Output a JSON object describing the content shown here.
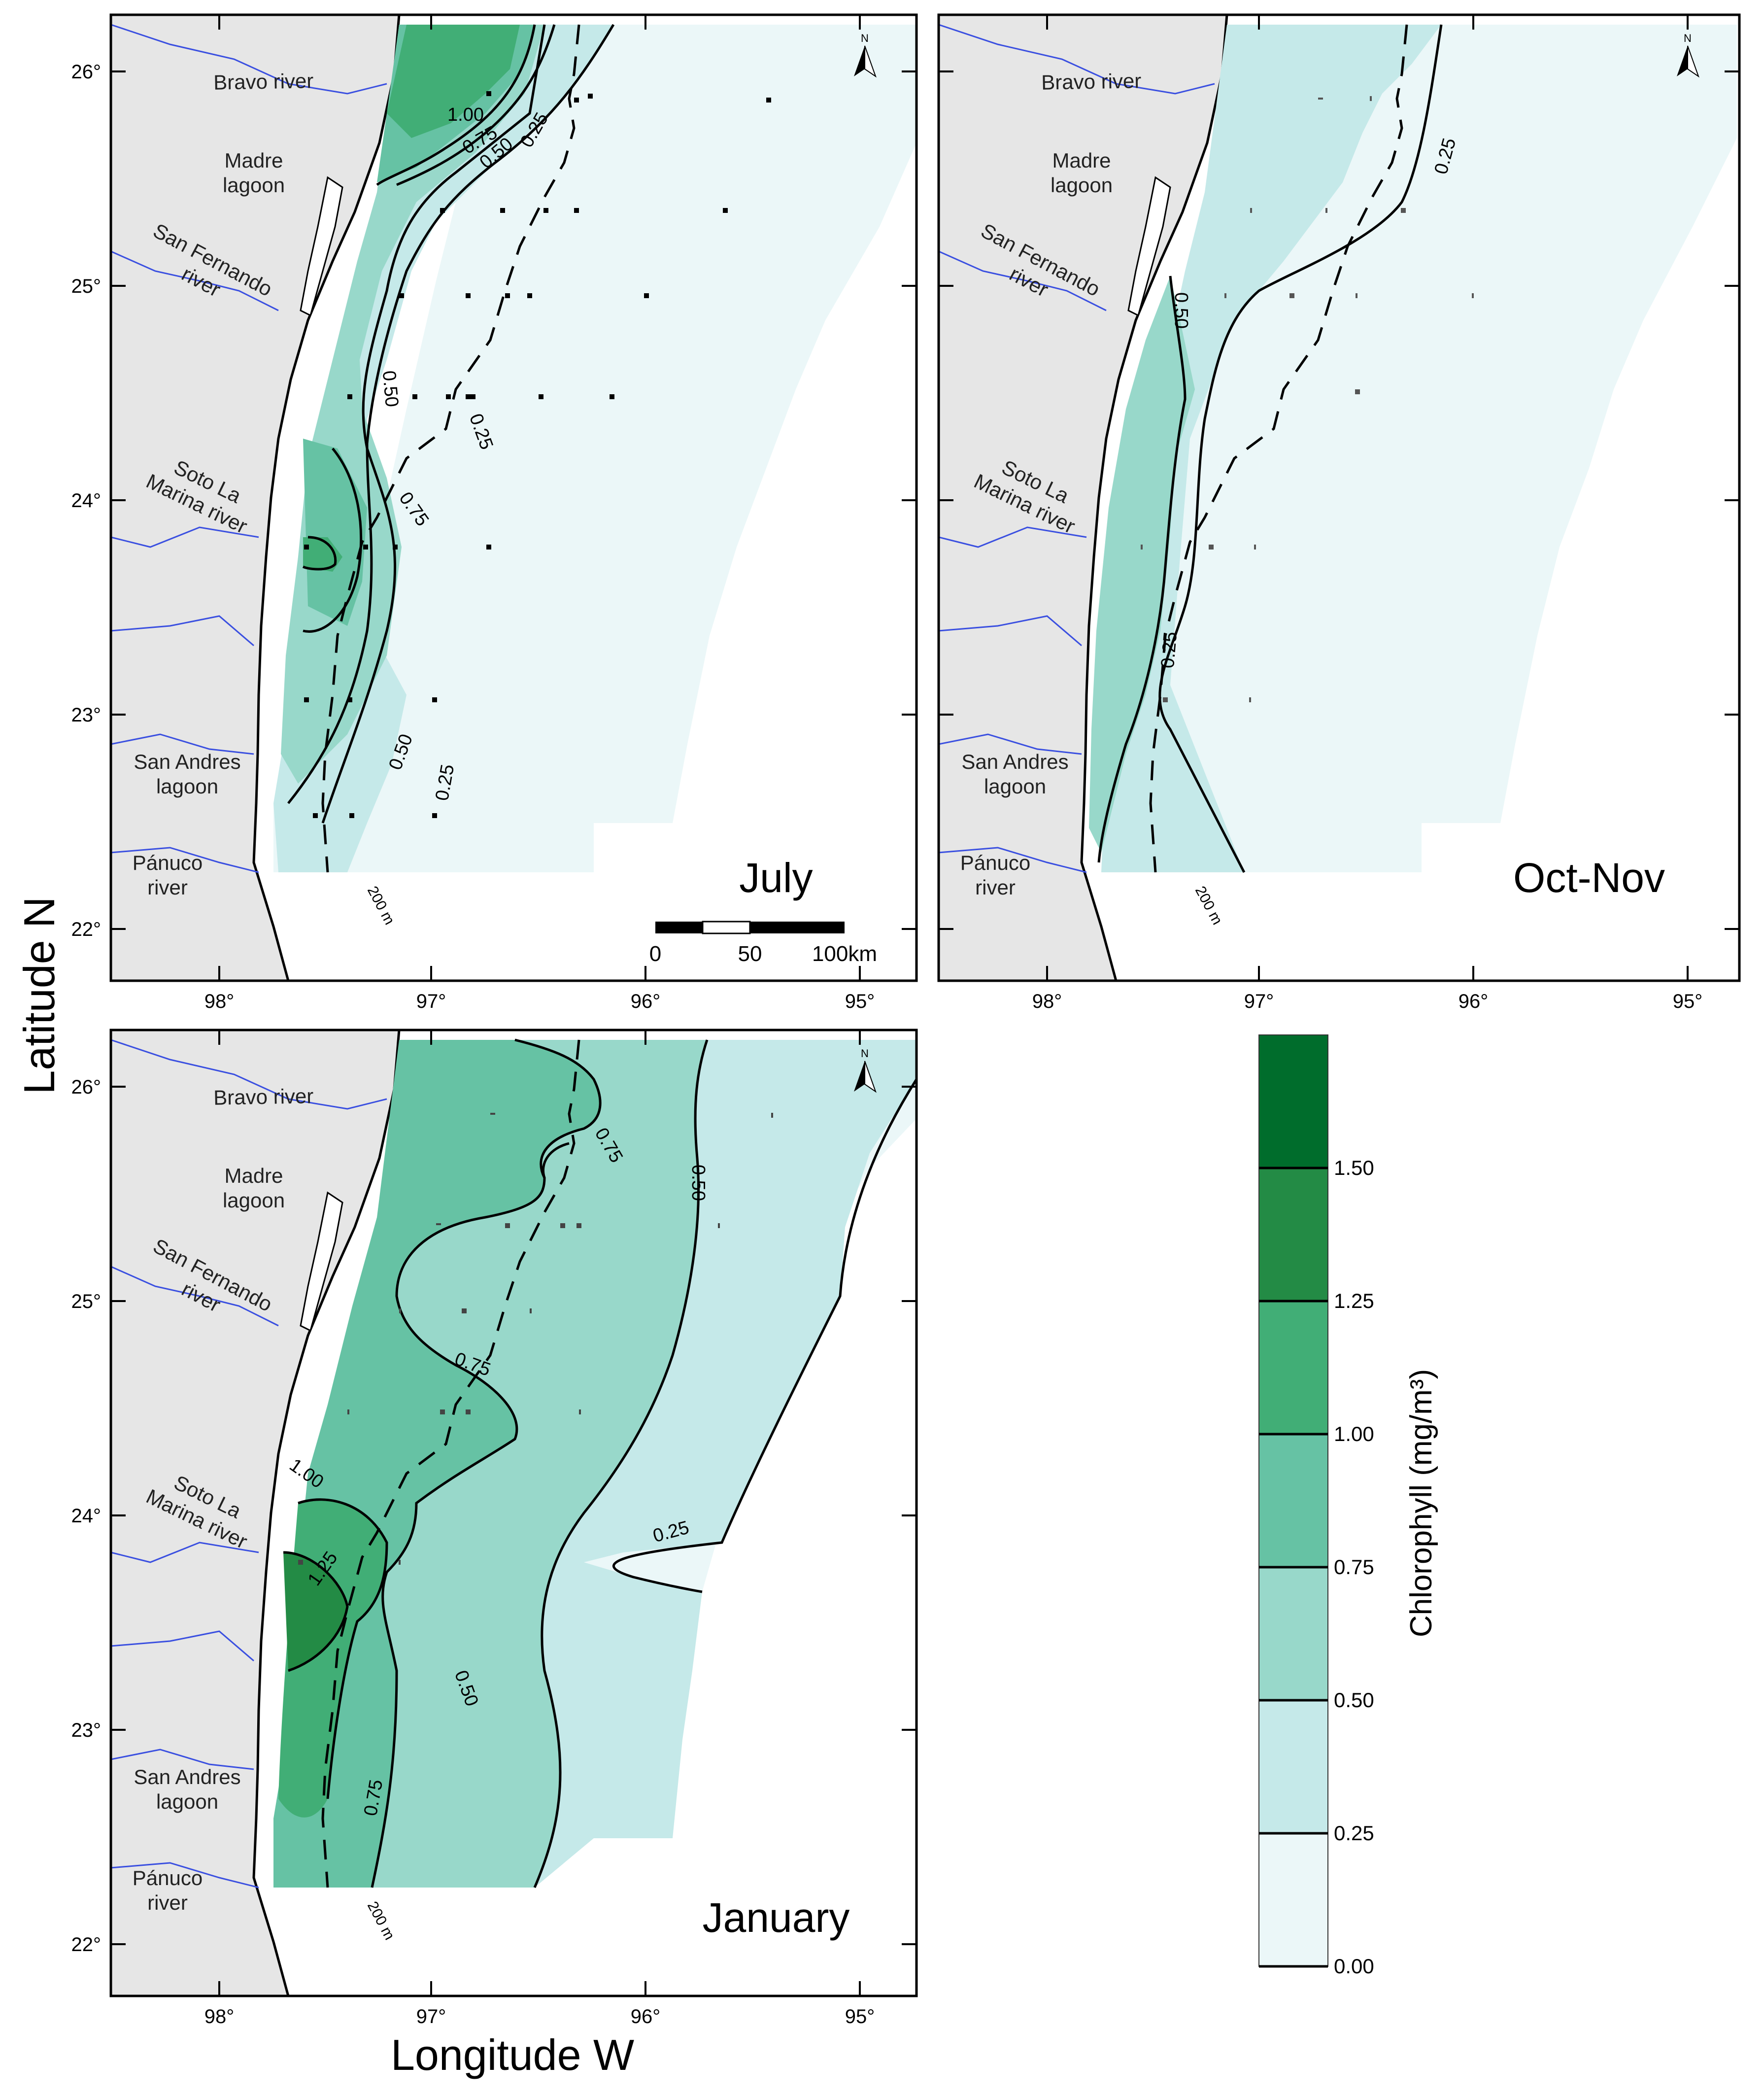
{
  "figure": {
    "ylabel": "Latitude N",
    "xlabel": "Longitude W",
    "lat_ticks": [
      "22°",
      "23°",
      "24°",
      "25°",
      "26°"
    ],
    "lon_ticks": [
      "98°",
      "97°",
      "96°",
      "95°"
    ],
    "isobath_label": "200 m",
    "north_symbol": "N"
  },
  "places": [
    {
      "id": "bravo",
      "lines": [
        "Bravo river"
      ]
    },
    {
      "id": "madre",
      "lines": [
        "Madre",
        "lagoon"
      ]
    },
    {
      "id": "sanfernando",
      "lines": [
        "San Fernando",
        "river"
      ]
    },
    {
      "id": "soto",
      "lines": [
        "Soto La",
        "Marina river"
      ]
    },
    {
      "id": "sanandres",
      "lines": [
        "San Andres",
        "lagoon"
      ]
    },
    {
      "id": "panuco",
      "lines": [
        "Pánuco",
        "river"
      ]
    }
  ],
  "panels": [
    {
      "id": "july",
      "title": "July",
      "contour_labels": [
        "1.00",
        "0.75",
        "0.50",
        "0.25",
        "0.50",
        "0.75",
        "0.25",
        "0.50",
        "0.25"
      ]
    },
    {
      "id": "octnov",
      "title": "Oct-Nov",
      "contour_labels": [
        "0.25",
        "0.50",
        "0.25"
      ]
    },
    {
      "id": "january",
      "title": "January",
      "contour_labels": [
        "0.75",
        "0.50",
        "0.75",
        "1.00",
        "1.25",
        "0.25",
        "0.50",
        "0.75"
      ]
    }
  ],
  "scalebar": {
    "labels": [
      "0",
      "50",
      "100km"
    ]
  },
  "colorbar": {
    "title": "Chlorophyll (mg/m³)",
    "bins": [
      {
        "range": "0.00-0.25",
        "color": "#ebf7f8"
      },
      {
        "range": "0.25-0.50",
        "color": "#c5e9e9"
      },
      {
        "range": "0.50-0.75",
        "color": "#98d8ca"
      },
      {
        "range": "0.75-1.00",
        "color": "#66c2a4"
      },
      {
        "range": "1.00-1.25",
        "color": "#41ae76"
      },
      {
        "range": "1.25-1.50",
        "color": "#238b45"
      },
      {
        "range": ">1.50",
        "color": "#006d2c"
      }
    ],
    "tick_labels": [
      "0.00",
      "0.25",
      "0.50",
      "0.75",
      "1.00",
      "1.25",
      "1.50"
    ]
  },
  "colors": {
    "land": "#e6e6e6",
    "river": "#3a4fe0",
    "contour": "#000000"
  }
}
